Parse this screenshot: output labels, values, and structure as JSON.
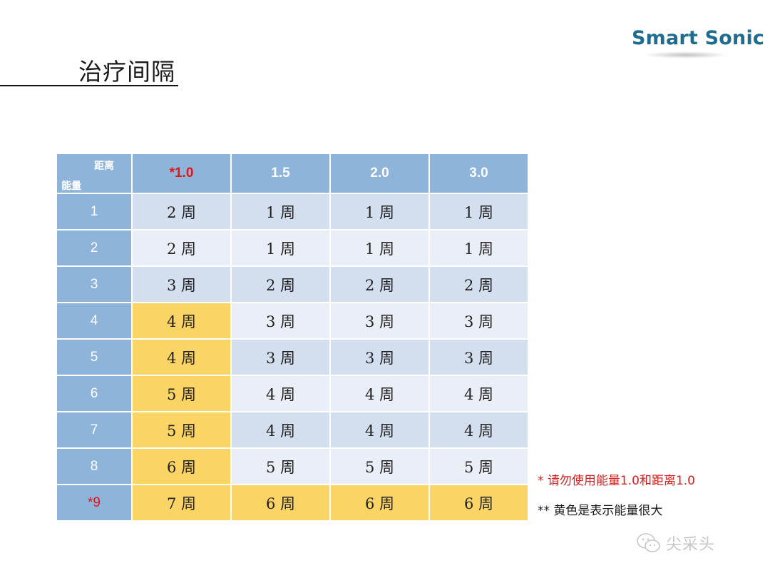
{
  "slide": {
    "title": "治疗间隔",
    "logo_text": "Smart Sonic"
  },
  "table": {
    "corner_top": "距离",
    "corner_bottom": "能量",
    "columns": [
      "*1.0",
      "1.5",
      "2.0",
      "3.0"
    ],
    "rows": [
      {
        "label": "1",
        "cells": [
          "2 周",
          "1 周",
          "1 周",
          "1 周"
        ]
      },
      {
        "label": "2",
        "cells": [
          "2 周",
          "1 周",
          "1 周",
          "1 周"
        ]
      },
      {
        "label": "3",
        "cells": [
          "3 周",
          "2 周",
          "2 周",
          "2 周"
        ]
      },
      {
        "label": "4",
        "cells": [
          "4 周",
          "3 周",
          "3 周",
          "3 周"
        ]
      },
      {
        "label": "5",
        "cells": [
          "4 周",
          "3 周",
          "3 周",
          "3 周"
        ]
      },
      {
        "label": "6",
        "cells": [
          "5 周",
          "4 周",
          "4 周",
          "4 周"
        ]
      },
      {
        "label": "7",
        "cells": [
          "5 周",
          "4 周",
          "4 周",
          "4 周"
        ]
      },
      {
        "label": "8",
        "cells": [
          "6 周",
          "5 周",
          "5 周",
          "5 周"
        ]
      },
      {
        "label": "*9",
        "cells": [
          "7 周",
          "6 周",
          "6 周",
          "6 周"
        ]
      }
    ],
    "colors": {
      "header": "#8fb4da",
      "band_dark": "#d3dfef",
      "band_light": "#eaeff7",
      "highlight": "#fbd466",
      "warning_red": "#e0161b"
    }
  },
  "notes": {
    "note1": "* 请勿使用能量1.0和距离1.0",
    "note2": "** 黄色是表示能量很大"
  },
  "watermark": {
    "icon": "wechat-icon",
    "text": "尖采头"
  }
}
